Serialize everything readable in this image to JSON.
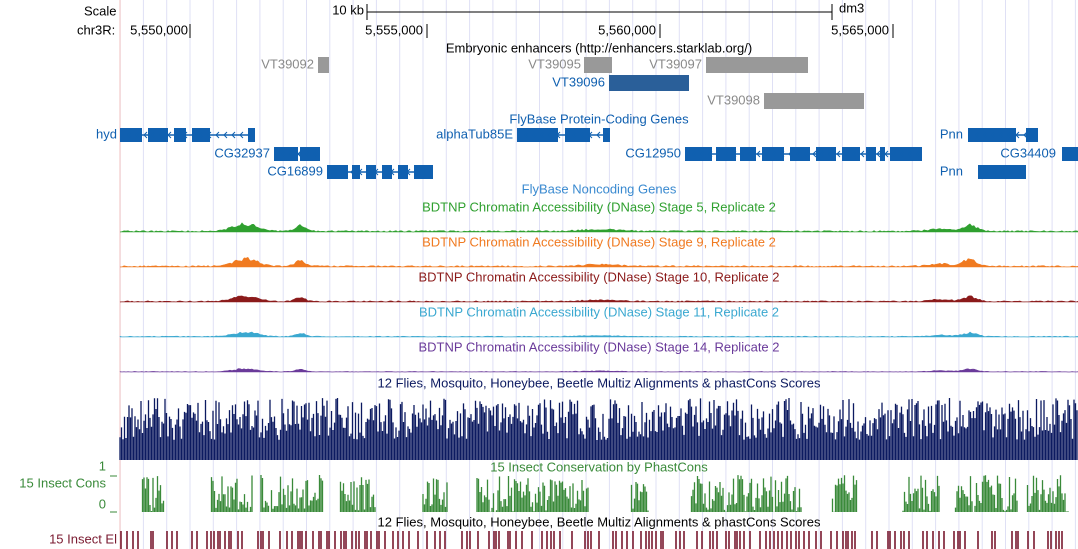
{
  "header": {
    "scale_label": "Scale",
    "scale_bar": "10 kb",
    "assembly": "dm3",
    "chrom_label": "chr3R:",
    "positions": [
      "5,550,000",
      "5,555,000",
      "5,560,000",
      "5,565,000"
    ]
  },
  "enhancers": {
    "title": "Embryonic enhancers (http://enhancers.starklab.org/)",
    "items": [
      "VT39092",
      "VT39095",
      "VT39097",
      "VT39096",
      "VT39098"
    ]
  },
  "genes": {
    "title": "FlyBase Protein-Coding Genes",
    "items": [
      "hyd",
      "CG32937",
      "CG16899",
      "alphaTub85E",
      "CG12950",
      "Pnn",
      "CG34409",
      "Pnn"
    ]
  },
  "noncoding": {
    "title": "FlyBase Noncoding Genes"
  },
  "dnase": [
    "BDTNP Chromatin Accessibility (DNase) Stage 5, Replicate 2",
    "BDTNP Chromatin Accessibility (DNase) Stage 9, Replicate 2",
    "BDTNP Chromatin Accessibility (DNase) Stage 10, Replicate 2",
    "BDTNP Chromatin Accessibility (DNase) Stage 11, Replicate 2",
    "BDTNP Chromatin Accessibility (DNase) Stage 14, Replicate 2"
  ],
  "conservation": {
    "multiz_title": "12 Flies, Mosquito, Honeybee, Beetle Multiz Alignments & phastCons Scores",
    "phastcons_title": "15 Insect Conservation by PhastCons",
    "phastcons_label": "15 Insect Cons",
    "axis_top": "1",
    "axis_bottom": "0",
    "elements_title": "12 Flies, Mosquito, Honeybee, Beetle Multiz Alignments & phastCons Scores",
    "elements_label": "15 Insect El"
  }
}
